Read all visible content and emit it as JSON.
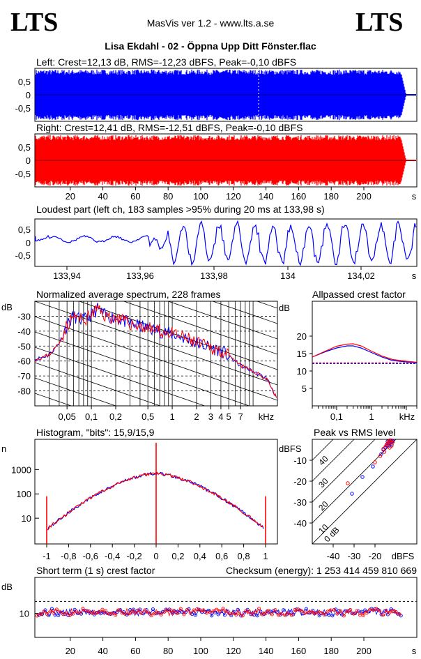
{
  "header": {
    "logo_left": "LTS",
    "logo_right": "LTS",
    "app": "MasVis ver 1.2 - www.lts.a.se",
    "track": "Lisa Ekdahl - 02 - Öppna Upp Ditt Fönster.flac"
  },
  "colors": {
    "left": "#0000ff",
    "right": "#ff0000"
  },
  "chart_data": [
    {
      "id": "waveform-left",
      "type": "area",
      "title": "Left: Crest=12,13 dB, RMS=-12,23 dBFS, Peak=-0,10 dBFS",
      "ylim": [
        -1,
        1
      ],
      "yticks": [
        "0,5",
        "0",
        "-0,5"
      ],
      "duration_s": 224
    },
    {
      "id": "waveform-right",
      "type": "area",
      "title": "Right: Crest=12,41 dB, RMS=-12,51 dBFS, Peak=-0,10 dBFS",
      "ylim": [
        -1,
        1
      ],
      "yticks": [
        "0,5",
        "0",
        "-0,5"
      ],
      "xticks": [
        "20",
        "40",
        "60",
        "80",
        "100",
        "120",
        "140",
        "160",
        "180",
        "200"
      ],
      "xunit": "s"
    },
    {
      "id": "loudest-part",
      "type": "line",
      "title": "Loudest part (left  ch, 183 samples >95% during 20 ms at 133,98 s)",
      "ylim": [
        -1,
        1
      ],
      "yticks": [
        "0,5",
        "0",
        "-0,5"
      ],
      "xticks": [
        "133,94",
        "133,96",
        "133,98",
        "134",
        "134,02"
      ],
      "xunit": "s"
    },
    {
      "id": "spectrum",
      "type": "line",
      "title": "Normalized average spectrum, 228 frames",
      "ylabel": "dB",
      "yticks": [
        "-30",
        "-40",
        "-50",
        "-60",
        "-70",
        "-80"
      ],
      "xticks": [
        "0,05",
        "0,1",
        "0,2",
        "0,5",
        "1",
        "2",
        "3",
        "4",
        "5",
        "7"
      ],
      "xunit": "kHz",
      "points": [
        [
          0.02,
          -59
        ],
        [
          0.03,
          -56
        ],
        [
          0.04,
          -48
        ],
        [
          0.05,
          -36
        ],
        [
          0.06,
          -30
        ],
        [
          0.08,
          -33
        ],
        [
          0.1,
          -29
        ],
        [
          0.12,
          -25
        ],
        [
          0.15,
          -30
        ],
        [
          0.2,
          -31
        ],
        [
          0.3,
          -35
        ],
        [
          0.5,
          -38
        ],
        [
          0.7,
          -40
        ],
        [
          1,
          -42
        ],
        [
          1.5,
          -45
        ],
        [
          2,
          -48
        ],
        [
          3,
          -51
        ],
        [
          4,
          -53
        ],
        [
          5,
          -57
        ],
        [
          7,
          -63
        ],
        [
          10,
          -67
        ],
        [
          15,
          -72
        ],
        [
          20,
          -86
        ]
      ]
    },
    {
      "id": "allpassed-crest",
      "type": "line",
      "title": "Allpassed crest factor",
      "ylabel": "dB",
      "yticks": [
        "20",
        "15",
        "10",
        "5"
      ],
      "xticks": [
        "0,1",
        "1"
      ],
      "xunit": "kHz",
      "series": [
        {
          "values": [
            [
              0.02,
              14.0
            ],
            [
              0.05,
              15.6
            ],
            [
              0.1,
              16.6
            ],
            [
              0.2,
              17.2
            ],
            [
              0.3,
              17.2
            ],
            [
              0.5,
              16.6
            ],
            [
              1,
              15.3
            ],
            [
              2,
              14.0
            ],
            [
              4,
              13.0
            ],
            [
              10,
              12.6
            ],
            [
              20,
              12.3
            ]
          ]
        },
        {
          "values": [
            [
              0.02,
              14.0
            ],
            [
              0.05,
              15.8
            ],
            [
              0.1,
              17.1
            ],
            [
              0.2,
              17.7
            ],
            [
              0.3,
              17.8
            ],
            [
              0.5,
              17.2
            ],
            [
              1,
              15.7
            ],
            [
              2,
              14.3
            ],
            [
              4,
              13.3
            ],
            [
              10,
              12.8
            ],
            [
              20,
              12.5
            ]
          ]
        }
      ],
      "reference_lines": [
        12.1,
        12.4
      ]
    },
    {
      "id": "histogram",
      "type": "line",
      "title": "Histogram, \"bits\": 15,9/15,9",
      "ylabel": "n",
      "yticks": [
        "1000",
        "100",
        "10"
      ],
      "xticks": [
        "-1",
        "-0,8",
        "-0,6",
        "-0,4",
        "-0,2",
        "0",
        "0,2",
        "0,4",
        "0,6",
        "0,8",
        "1"
      ]
    },
    {
      "id": "peak-vs-rms",
      "type": "scatter",
      "title": "Peak vs RMS level",
      "ylabel": "dBFS",
      "xlabel": "dBFS",
      "yticks": [
        "-10",
        "-20",
        "-30",
        "-40"
      ],
      "xticks": [
        "-40",
        "-30",
        "-20"
      ],
      "diagonal_labels": [
        "40",
        "30",
        "20",
        "10",
        "0 dB"
      ],
      "series": [
        {
          "values": [
            [
              -14,
              -1
            ],
            [
              -13,
              -1.5
            ],
            [
              -12.5,
              -0.5
            ],
            [
              -13.5,
              -2
            ],
            [
              -14.5,
              -3
            ],
            [
              -15,
              -4
            ],
            [
              -16,
              -5
            ],
            [
              -12,
              -1
            ],
            [
              -11.5,
              -0.8
            ],
            [
              -17,
              -7
            ],
            [
              -21,
              -13
            ],
            [
              -26,
              -18
            ],
            [
              -31,
              -26
            ],
            [
              -13,
              -3
            ],
            [
              -12,
              -2.5
            ]
          ]
        },
        {
          "values": [
            [
              -14,
              -2
            ],
            [
              -13,
              -0.5
            ],
            [
              -12.5,
              -1.5
            ],
            [
              -13.5,
              -1
            ],
            [
              -14.5,
              -2.5
            ],
            [
              -15,
              -3.5
            ],
            [
              -16,
              -4.5
            ],
            [
              -12,
              -0.5
            ],
            [
              -11.5,
              -1.3
            ],
            [
              -17.5,
              -8
            ],
            [
              -20,
              -11
            ],
            [
              -33,
              -21
            ],
            [
              -13,
              -4
            ],
            [
              -15.5,
              -6
            ],
            [
              -12,
              -3
            ]
          ]
        }
      ]
    },
    {
      "id": "short-term-crest",
      "type": "scatter",
      "title": "Short term (1 s) crest factor",
      "ylabel": "dB",
      "yticks": [
        "10"
      ],
      "xticks": [
        "20",
        "40",
        "60",
        "80",
        "100",
        "120",
        "140",
        "160",
        "180",
        "200"
      ],
      "xunit": "s",
      "reference_line": 15,
      "typical_range": [
        9,
        12
      ]
    }
  ],
  "checksum": "Checksum (energy):  1 253 414 459 810 669"
}
